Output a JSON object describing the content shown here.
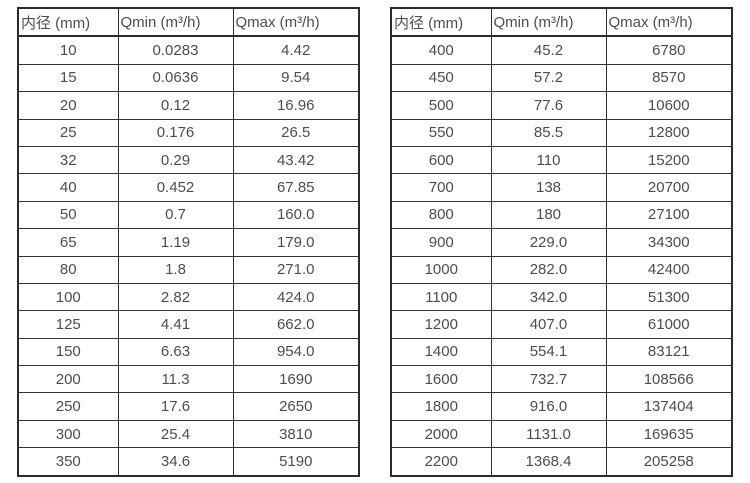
{
  "colors": {
    "border": "#333333",
    "outer_border": "#2b2b2b",
    "text": "#4d4d4d",
    "background": "#ffffff"
  },
  "column_keys": [
    "diameter",
    "qmin",
    "qmax"
  ],
  "tables": [
    {
      "name": "flow-rate-table-small-diameters",
      "headers": [
        "内径 (mm)",
        "Qmin (m³/h)",
        "Qmax (m³/h)"
      ],
      "rows": [
        [
          "10",
          "0.0283",
          "4.42"
        ],
        [
          "15",
          "0.0636",
          "9.54"
        ],
        [
          "20",
          "0.12",
          "16.96"
        ],
        [
          "25",
          "0.176",
          "26.5"
        ],
        [
          "32",
          "0.29",
          "43.42"
        ],
        [
          "40",
          "0.452",
          "67.85"
        ],
        [
          "50",
          "0.7",
          "160.0"
        ],
        [
          "65",
          "1.19",
          "179.0"
        ],
        [
          "80",
          "1.8",
          "271.0"
        ],
        [
          "100",
          "2.82",
          "424.0"
        ],
        [
          "125",
          "4.41",
          "662.0"
        ],
        [
          "150",
          "6.63",
          "954.0"
        ],
        [
          "200",
          "11.3",
          "1690"
        ],
        [
          "250",
          "17.6",
          "2650"
        ],
        [
          "300",
          "25.4",
          "3810"
        ],
        [
          "350",
          "34.6",
          "5190"
        ]
      ]
    },
    {
      "name": "flow-rate-table-large-diameters",
      "headers": [
        "内径 (mm)",
        "Qmin (m³/h)",
        "Qmax (m³/h)"
      ],
      "rows": [
        [
          "400",
          "45.2",
          "6780"
        ],
        [
          "450",
          "57.2",
          "8570"
        ],
        [
          "500",
          "77.6",
          "10600"
        ],
        [
          "550",
          "85.5",
          "12800"
        ],
        [
          "600",
          "110",
          "15200"
        ],
        [
          "700",
          "138",
          "20700"
        ],
        [
          "800",
          "180",
          "27100"
        ],
        [
          "900",
          "229.0",
          "34300"
        ],
        [
          "1000",
          "282.0",
          "42400"
        ],
        [
          "1100",
          "342.0",
          "51300"
        ],
        [
          "1200",
          "407.0",
          "61000"
        ],
        [
          "1400",
          "554.1",
          "83121"
        ],
        [
          "1600",
          "732.7",
          "108566"
        ],
        [
          "1800",
          "916.0",
          "137404"
        ],
        [
          "2000",
          "1131.0",
          "169635"
        ],
        [
          "2200",
          "1368.4",
          "205258"
        ]
      ]
    }
  ]
}
